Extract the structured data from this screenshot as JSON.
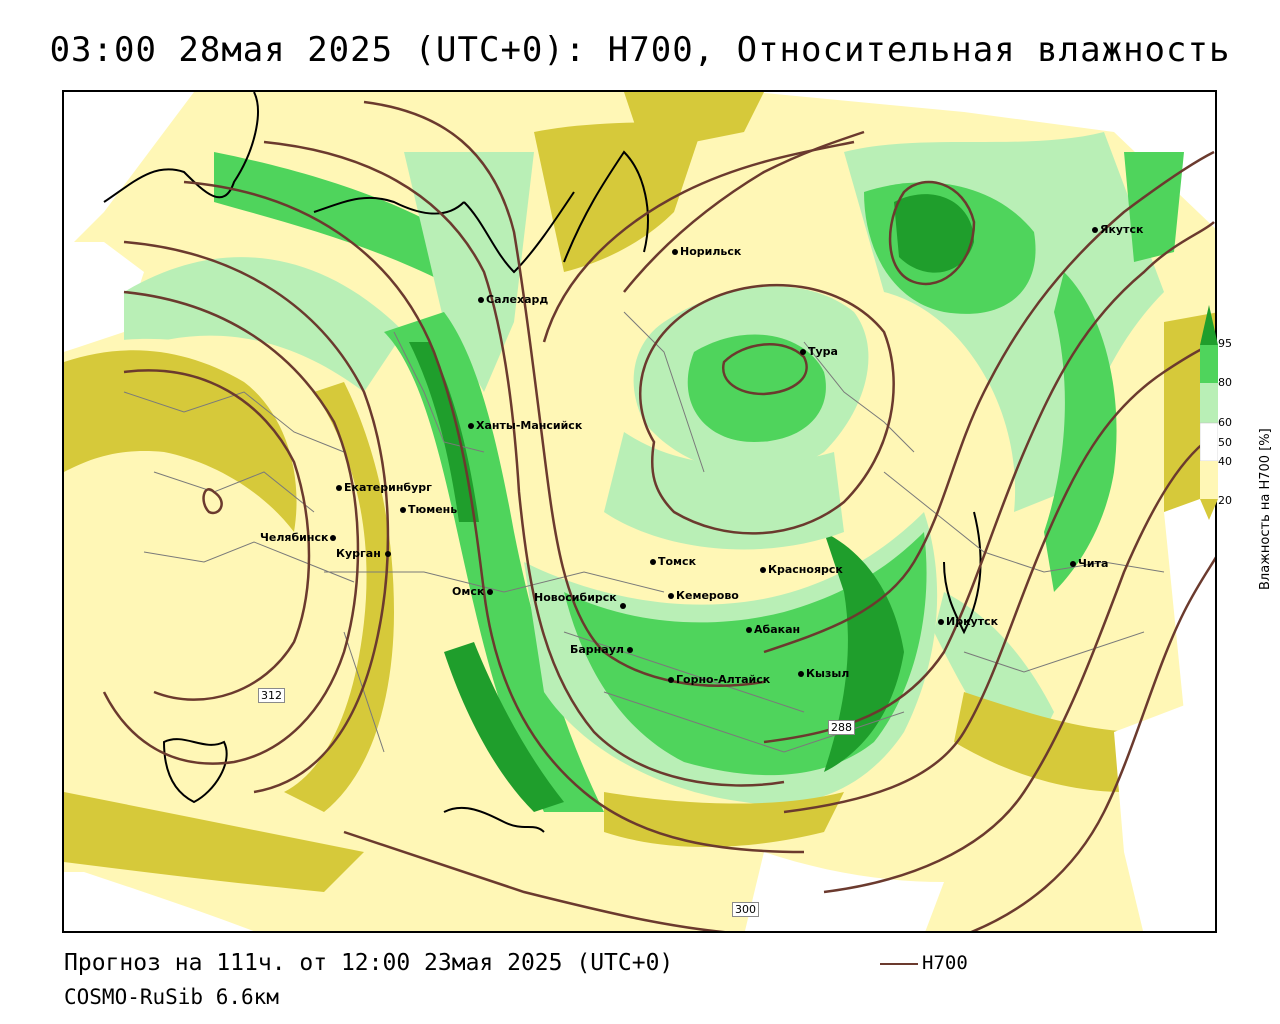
{
  "title": "03:00 28мая 2025 (UTC+0): H700, Относительная влажность",
  "footer": {
    "forecast": "Прогноз на 111ч. от 12:00 23мая 2025 (UTC+0)",
    "model": "COSMO-RuSib 6.6км"
  },
  "legend": {
    "h700_label": "H700",
    "line_color": "#6b3a2e"
  },
  "colorbar": {
    "title": "Влажность на H700 [%]",
    "ticks": [
      "95",
      "80",
      "60",
      "50",
      "40",
      "20"
    ],
    "colors": {
      "g95": "#1f9e2c",
      "g80": "#4fd45c",
      "g60": "#b9efb6",
      "w": "#ffffff",
      "y40": "#fff7b6",
      "y20": "#d6c93a"
    }
  },
  "contour_labels": [
    "312",
    "288",
    "300"
  ],
  "cities": [
    {
      "name": "Норильск"
    },
    {
      "name": "Якутск"
    },
    {
      "name": "Салехард"
    },
    {
      "name": "Тура"
    },
    {
      "name": "Ханты-Мансийск"
    },
    {
      "name": "Екатеринбург"
    },
    {
      "name": "Тюмень"
    },
    {
      "name": "Челябинск"
    },
    {
      "name": "Курган"
    },
    {
      "name": "Томск"
    },
    {
      "name": "Красноярск"
    },
    {
      "name": "Омск"
    },
    {
      "name": "Новосибирск"
    },
    {
      "name": "Кемерово"
    },
    {
      "name": "Абакан"
    },
    {
      "name": "Барнаул"
    },
    {
      "name": "Иркутск"
    },
    {
      "name": "Чита"
    },
    {
      "name": "Кызыл"
    },
    {
      "name": "Горно-Алтайск"
    }
  ]
}
